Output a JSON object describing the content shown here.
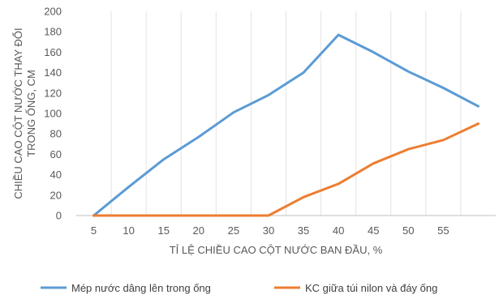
{
  "chart_data": {
    "type": "line",
    "title": "",
    "xlabel": "TỈ LỆ CHIỀU CAO CỘT NƯỚC BAN ĐẦU, %",
    "ylabel_lines": [
      "CHIỀU CAO CỘT NƯỚC THAY ĐỔI",
      "TRONG ỐNG, CM"
    ],
    "categories": [
      "5",
      "10",
      "15",
      "20",
      "25",
      "30",
      "35",
      "40",
      "45",
      "50",
      "55",
      ""
    ],
    "ylim": [
      0,
      200
    ],
    "yticks": [
      "0",
      "20",
      "40",
      "60",
      "80",
      "100",
      "120",
      "140",
      "160",
      "180",
      "200"
    ],
    "grid": "vertical",
    "legend": "bottom",
    "series": [
      {
        "name": "Mép nước dâng lên trong ống",
        "color": "#5b9bd5",
        "values": [
          0,
          28,
          55,
          77,
          101,
          118,
          140,
          177,
          160,
          141,
          125,
          107
        ]
      },
      {
        "name": "KC giữa túi nilon và đáy ống",
        "color": "#ed7d31",
        "values": [
          0,
          0,
          0,
          0,
          0,
          0,
          18,
          31,
          51,
          65,
          74,
          90
        ]
      }
    ]
  }
}
